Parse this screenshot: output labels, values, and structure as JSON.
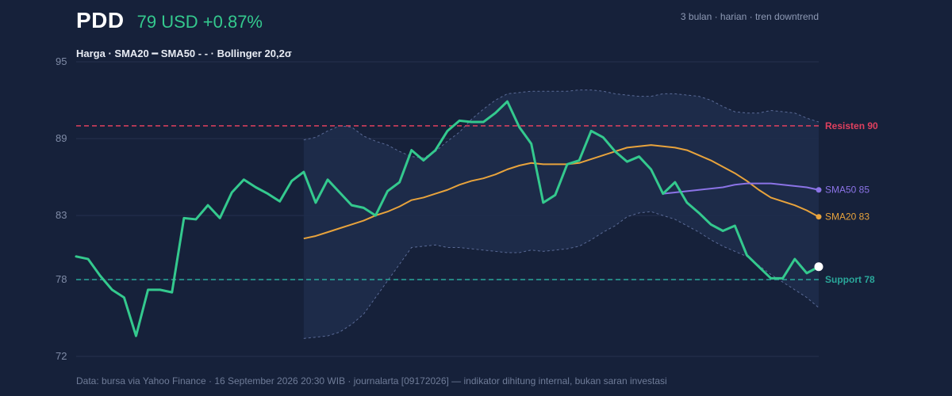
{
  "header": {
    "ticker": "PDD",
    "price_change": "79 USD +0.87%",
    "period": "3 bulan · harian · tren downtrend"
  },
  "legend": "Harga · SMA20 ━ SMA50 - - · Bollinger 20,2σ",
  "footer": "Data: bursa via Yahoo Finance · 16 September 2026 20:30 WIB · journalarta [09172026] — indikator dihitung internal, bukan saran investasi",
  "colors": {
    "background": "#16213a",
    "price": "#34c98e",
    "sma20": "#e8a33c",
    "sma50": "#8b73e6",
    "bollinger_band": "#1e2c4b",
    "bollinger_line": "#5a6a96",
    "resistance": "#e0405e",
    "support": "#2aa79a",
    "grid": "#25314f"
  },
  "chart_data": {
    "type": "line",
    "ylim": [
      72,
      95
    ],
    "yticks": [
      "95",
      "89",
      "83",
      "78",
      "72"
    ],
    "grid": "horizontal",
    "x": [
      1,
      2,
      3,
      4,
      5,
      6,
      7,
      8,
      9,
      10,
      11,
      12,
      13,
      14,
      15,
      16,
      17,
      18,
      19,
      20,
      21,
      22,
      23,
      24,
      25,
      26,
      27,
      28,
      29,
      30,
      31,
      32,
      33,
      34,
      35,
      36,
      37,
      38,
      39,
      40,
      41,
      42,
      43,
      44,
      45,
      46,
      47,
      48,
      49,
      50,
      51,
      52,
      53,
      54,
      55,
      56,
      57,
      58,
      59,
      60,
      61,
      62,
      63
    ],
    "series": [
      {
        "name": "Harga",
        "color": "#34c98e",
        "values": [
          79.8,
          79.6,
          78.3,
          77.2,
          76.6,
          73.6,
          77.2,
          77.2,
          77.0,
          82.8,
          82.7,
          83.8,
          82.8,
          84.8,
          85.8,
          85.2,
          84.7,
          84.1,
          85.7,
          86.4,
          84.0,
          85.8,
          84.8,
          83.8,
          83.6,
          83.0,
          84.9,
          85.6,
          88.1,
          87.3,
          88.1,
          89.6,
          90.4,
          90.3,
          90.3,
          91.0,
          91.9,
          89.9,
          88.6,
          84.0,
          84.6,
          87.0,
          87.3,
          89.6,
          89.1,
          88.0,
          87.2,
          87.6,
          86.6,
          84.7,
          85.6,
          84.0,
          83.2,
          82.3,
          81.8,
          82.2,
          79.9,
          79.0,
          78.1,
          78.1,
          79.6,
          78.5,
          79.0
        ]
      },
      {
        "name": "SMA20",
        "color": "#e8a33c",
        "values": [
          null,
          null,
          null,
          null,
          null,
          null,
          null,
          null,
          null,
          null,
          null,
          null,
          null,
          null,
          null,
          null,
          null,
          null,
          null,
          81.2,
          81.4,
          81.7,
          82.0,
          82.3,
          82.6,
          83.0,
          83.3,
          83.7,
          84.2,
          84.4,
          84.7,
          85.0,
          85.4,
          85.7,
          85.9,
          86.2,
          86.6,
          86.9,
          87.1,
          87.0,
          87.0,
          87.0,
          87.1,
          87.4,
          87.7,
          88.0,
          88.3,
          88.4,
          88.5,
          88.4,
          88.3,
          88.1,
          87.7,
          87.3,
          86.8,
          86.3,
          85.7,
          85.0,
          84.4,
          84.1,
          83.8,
          83.4,
          82.9
        ]
      },
      {
        "name": "SMA50",
        "color": "#8b73e6",
        "values": [
          null,
          null,
          null,
          null,
          null,
          null,
          null,
          null,
          null,
          null,
          null,
          null,
          null,
          null,
          null,
          null,
          null,
          null,
          null,
          null,
          null,
          null,
          null,
          null,
          null,
          null,
          null,
          null,
          null,
          null,
          null,
          null,
          null,
          null,
          null,
          null,
          null,
          null,
          null,
          null,
          null,
          null,
          null,
          null,
          null,
          null,
          null,
          null,
          null,
          84.7,
          84.8,
          84.9,
          85.0,
          85.1,
          85.2,
          85.4,
          85.5,
          85.5,
          85.5,
          85.4,
          85.3,
          85.2,
          85.0
        ]
      },
      {
        "name": "Bollinger atas",
        "color": "#5a6a96",
        "values": [
          null,
          null,
          null,
          null,
          null,
          null,
          null,
          null,
          null,
          null,
          null,
          null,
          null,
          null,
          null,
          null,
          null,
          null,
          null,
          88.9,
          89.1,
          89.6,
          90.0,
          89.9,
          89.2,
          88.8,
          88.5,
          88.0,
          87.6,
          87.5,
          88.0,
          88.8,
          89.5,
          90.5,
          91.3,
          92.0,
          92.5,
          92.6,
          92.7,
          92.7,
          92.7,
          92.7,
          92.8,
          92.8,
          92.7,
          92.5,
          92.4,
          92.3,
          92.3,
          92.5,
          92.5,
          92.4,
          92.3,
          92.0,
          91.5,
          91.1,
          91.0,
          91.0,
          91.2,
          91.1,
          91.0,
          90.6,
          90.3
        ]
      },
      {
        "name": "Bollinger bawah",
        "color": "#5a6a96",
        "values": [
          null,
          null,
          null,
          null,
          null,
          null,
          null,
          null,
          null,
          null,
          null,
          null,
          null,
          null,
          null,
          null,
          null,
          null,
          null,
          73.4,
          73.5,
          73.6,
          73.9,
          74.5,
          75.3,
          76.6,
          77.9,
          79.2,
          80.5,
          80.6,
          80.7,
          80.5,
          80.5,
          80.4,
          80.3,
          80.2,
          80.1,
          80.1,
          80.3,
          80.2,
          80.3,
          80.4,
          80.6,
          81.1,
          81.7,
          82.2,
          82.9,
          83.2,
          83.3,
          83.0,
          82.7,
          82.2,
          81.7,
          81.1,
          80.6,
          80.2,
          79.8,
          79.1,
          78.4,
          77.8,
          77.2,
          76.6,
          75.8
        ]
      }
    ],
    "reference_lines": [
      {
        "label": "Resisten 90",
        "value": 90,
        "color": "#e0405e",
        "style": "dashed"
      },
      {
        "label": "Support 78",
        "value": 78,
        "color": "#2aa79a",
        "style": "dashed"
      }
    ],
    "end_labels": [
      {
        "label": "SMA50 85",
        "series": "SMA50",
        "color": "#8b73e6"
      },
      {
        "label": "SMA20 83",
        "series": "SMA20",
        "color": "#e8a33c"
      }
    ]
  }
}
